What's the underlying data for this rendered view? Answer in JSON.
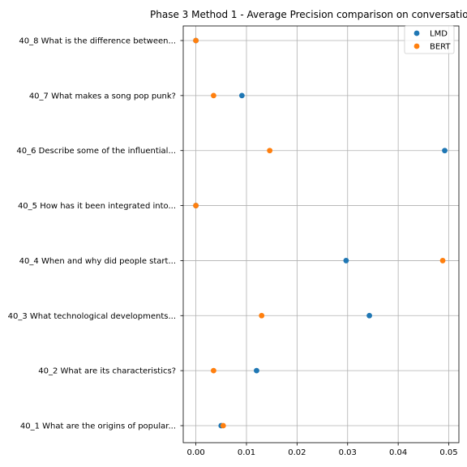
{
  "chart_data": {
    "type": "scatter",
    "title": "Phase 3 Method 1 - Average Precision comparison on conversatio",
    "xlabel": "",
    "ylabel": "",
    "xlim": [
      -0.0025,
      0.052
    ],
    "x_ticks": [
      0.0,
      0.01,
      0.02,
      0.03,
      0.04,
      0.05
    ],
    "x_tick_labels": [
      "0.00",
      "0.01",
      "0.02",
      "0.03",
      "0.04",
      "0.05"
    ],
    "grid": true,
    "legend_position": "top-right",
    "categories": [
      "40_1 What are the origins of popular...",
      "40_2 What are its characteristics?",
      "40_3 What technological developments...",
      "40_4 When and why did people start...",
      "40_5 How has it been integrated into...",
      "40_6 Describe some of the influential...",
      "40_7 What makes a song pop punk?",
      "40_8 What is the difference between..."
    ],
    "series": [
      {
        "name": "LMD",
        "color": "#1f77b4",
        "values": [
          0.005,
          0.012,
          0.0343,
          0.0297,
          0.0,
          0.0492,
          0.0091,
          0.0
        ]
      },
      {
        "name": "BERT",
        "color": "#ff7f0e",
        "values": [
          0.0054,
          0.0035,
          0.013,
          0.0488,
          0.0,
          0.0146,
          0.0035,
          0.0
        ]
      }
    ]
  }
}
